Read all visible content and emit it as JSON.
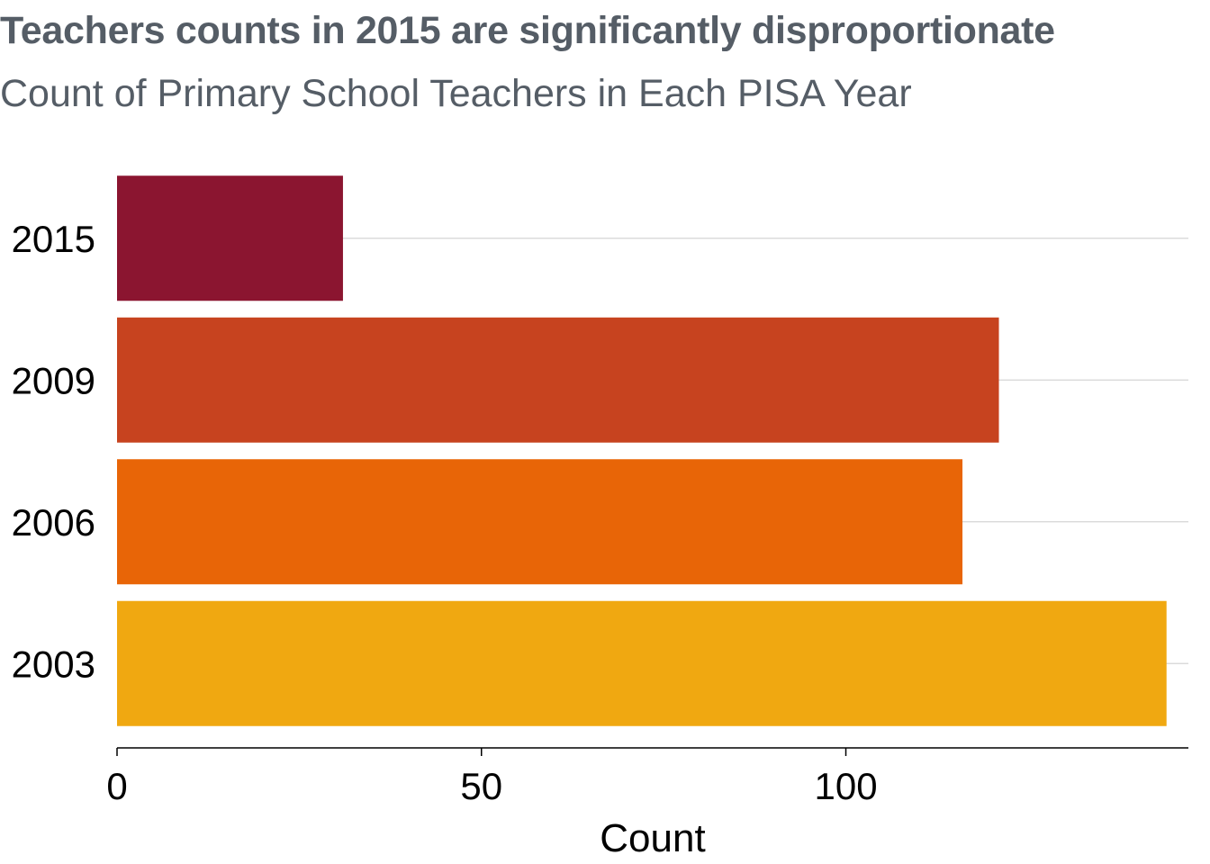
{
  "chart_data": {
    "type": "bar",
    "orientation": "horizontal",
    "title": "Teachers counts in 2015 are significantly disproportionate",
    "subtitle": "Count of Primary School Teachers in Each PISA Year",
    "xlabel": "Count",
    "ylabel": "",
    "categories": [
      "2015",
      "2009",
      "2006",
      "2003"
    ],
    "values": [
      31,
      121,
      116,
      144
    ],
    "colors": [
      "#8b1530",
      "#c7431f",
      "#e86507",
      "#f0a811"
    ],
    "xlim": [
      0,
      147
    ],
    "xticks": [
      0,
      50,
      100
    ],
    "grid": "horizontal-major",
    "legend": "none"
  }
}
